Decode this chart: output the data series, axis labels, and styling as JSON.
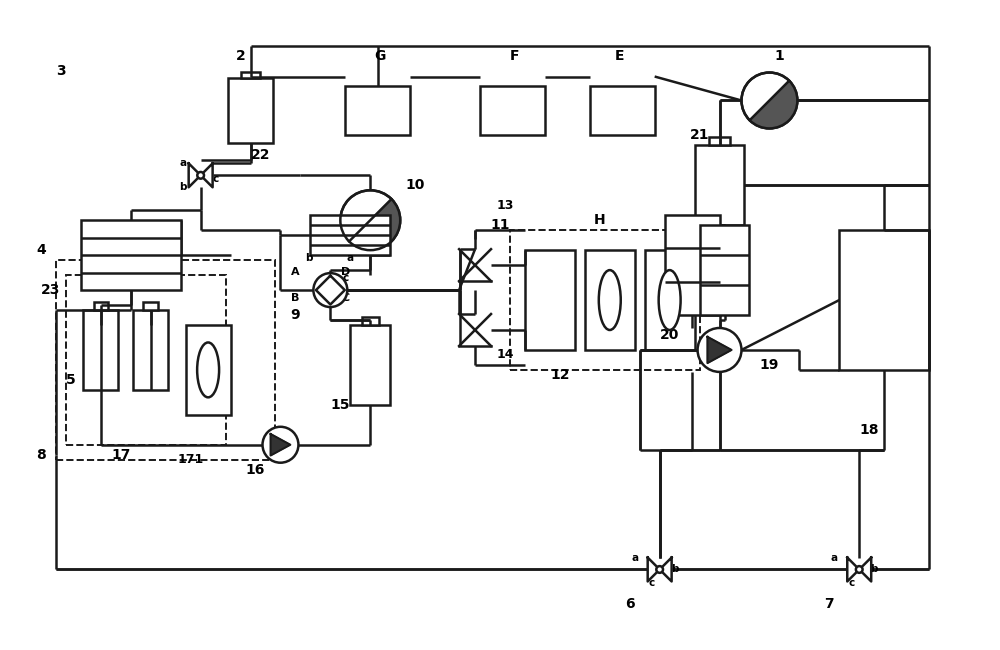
{
  "bg_color": "#ffffff",
  "lc": "#1a1a1a",
  "lw": 1.8,
  "figsize": [
    10,
    6.5
  ],
  "dpi": 100,
  "xlim": [
    0,
    100
  ],
  "ylim": [
    0,
    65
  ]
}
